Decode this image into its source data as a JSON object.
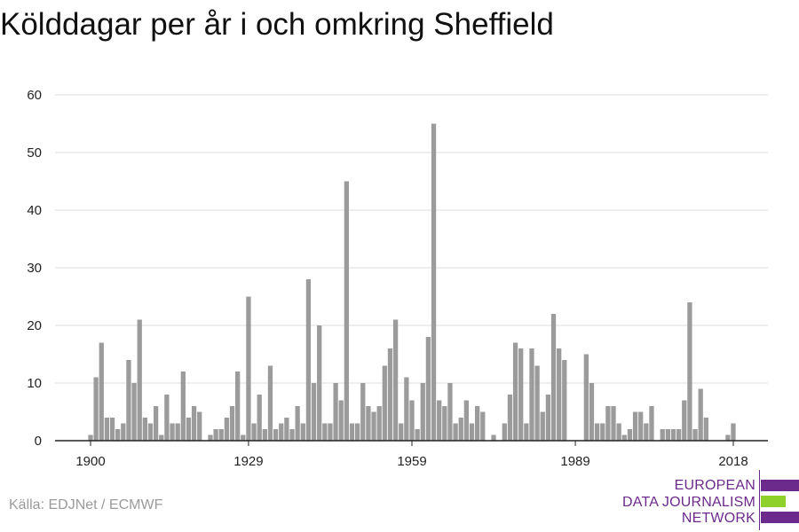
{
  "title": "Kölddagar per år i och omkring Sheffield",
  "source": "Källa: EDJNet / ECMWF",
  "logo": {
    "lines": [
      "EUROPEAN",
      "DATA JOURNALISM",
      "NETWORK"
    ],
    "colors": {
      "purple": "#6c2a8c",
      "green": "#8ed12a"
    }
  },
  "colors": {
    "bar": "#9b9b9b",
    "grid": "#dddddd",
    "axis": "#222222",
    "text": "#222222"
  },
  "chart_data": {
    "type": "bar",
    "title": "Kölddagar per år i och omkring Sheffield",
    "xlabel": "",
    "ylabel": "",
    "x_start": 1900,
    "x_end": 2018,
    "xticks": [
      1900,
      1929,
      1959,
      1989,
      2018
    ],
    "ylim": [
      0,
      60
    ],
    "yticks": [
      0,
      10,
      20,
      30,
      40,
      50,
      60
    ],
    "grid": true,
    "categories": [
      1900,
      1901,
      1902,
      1903,
      1904,
      1905,
      1906,
      1907,
      1908,
      1909,
      1910,
      1911,
      1912,
      1913,
      1914,
      1915,
      1916,
      1917,
      1918,
      1919,
      1920,
      1921,
      1922,
      1923,
      1924,
      1925,
      1926,
      1927,
      1928,
      1929,
      1930,
      1931,
      1932,
      1933,
      1934,
      1935,
      1936,
      1937,
      1938,
      1939,
      1940,
      1941,
      1942,
      1943,
      1944,
      1945,
      1946,
      1947,
      1948,
      1949,
      1950,
      1951,
      1952,
      1953,
      1954,
      1955,
      1956,
      1957,
      1958,
      1959,
      1960,
      1961,
      1962,
      1963,
      1964,
      1965,
      1966,
      1967,
      1968,
      1969,
      1970,
      1971,
      1972,
      1973,
      1974,
      1975,
      1976,
      1977,
      1978,
      1979,
      1980,
      1981,
      1982,
      1983,
      1984,
      1985,
      1986,
      1987,
      1988,
      1989,
      1990,
      1991,
      1992,
      1993,
      1994,
      1995,
      1996,
      1997,
      1998,
      1999,
      2000,
      2001,
      2002,
      2003,
      2004,
      2005,
      2006,
      2007,
      2008,
      2009,
      2010,
      2011,
      2012,
      2013,
      2014,
      2015,
      2016,
      2017,
      2018
    ],
    "values": [
      1,
      11,
      17,
      4,
      4,
      2,
      3,
      14,
      10,
      21,
      4,
      3,
      6,
      1,
      8,
      3,
      3,
      12,
      4,
      6,
      5,
      0,
      1,
      2,
      2,
      4,
      6,
      12,
      1,
      25,
      3,
      8,
      2,
      13,
      2,
      3,
      4,
      2,
      6,
      3,
      28,
      10,
      20,
      3,
      3,
      10,
      7,
      45,
      3,
      3,
      10,
      6,
      5,
      6,
      13,
      16,
      21,
      3,
      11,
      7,
      2,
      10,
      18,
      55,
      7,
      6,
      10,
      3,
      4,
      7,
      3,
      6,
      5,
      0,
      1,
      0,
      3,
      8,
      17,
      16,
      3,
      16,
      13,
      5,
      8,
      22,
      16,
      14,
      0,
      0,
      0,
      15,
      10,
      3,
      3,
      6,
      6,
      3,
      1,
      2,
      5,
      5,
      3,
      6,
      0,
      2,
      2,
      2,
      2,
      7,
      24,
      2,
      9,
      4,
      0,
      0,
      0,
      1,
      3
    ]
  }
}
